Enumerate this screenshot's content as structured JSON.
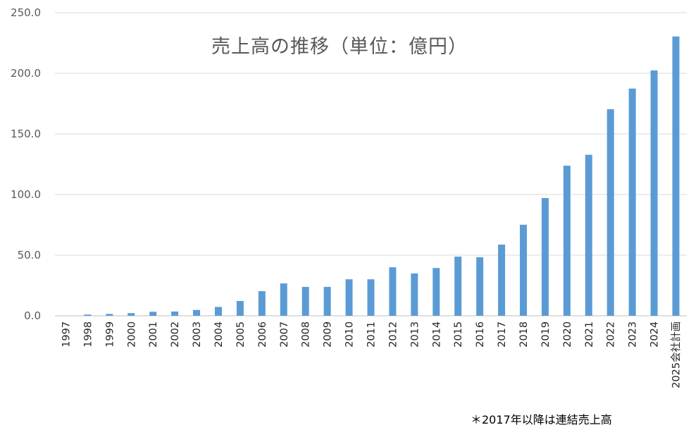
{
  "chart_data": {
    "type": "bar",
    "title": "売上高の推移（単位：億円）",
    "xlabel": "",
    "ylabel": "",
    "categories": [
      "1997",
      "1998",
      "1999",
      "2000",
      "2001",
      "2002",
      "2003",
      "2004",
      "2005",
      "2006",
      "2007",
      "2008",
      "2009",
      "2010",
      "2011",
      "2012",
      "2013",
      "2014",
      "2015",
      "2016",
      "2017",
      "2018",
      "2019",
      "2020",
      "2021",
      "2022",
      "2023",
      "2024",
      "2025会社計画"
    ],
    "values": [
      0,
      1,
      1.5,
      2.2,
      3.3,
      3.5,
      4.8,
      7.3,
      12.2,
      20.3,
      26.7,
      23.8,
      23.8,
      30.1,
      30.1,
      40.0,
      34.9,
      39.4,
      48.8,
      48.3,
      58.7,
      75.1,
      97.1,
      123.8,
      132.8,
      170.4,
      187.4,
      202.4,
      230.4
    ],
    "ylim": [
      0,
      250
    ],
    "yticks": [
      "0.0",
      "50.0",
      "100.0",
      "150.0",
      "200.0",
      "250.0"
    ],
    "grid": true,
    "bar_color": "#5B9BD5",
    "grid_color": "#D9D9D9"
  },
  "footnote": "＊2017年以降は連結売上高"
}
